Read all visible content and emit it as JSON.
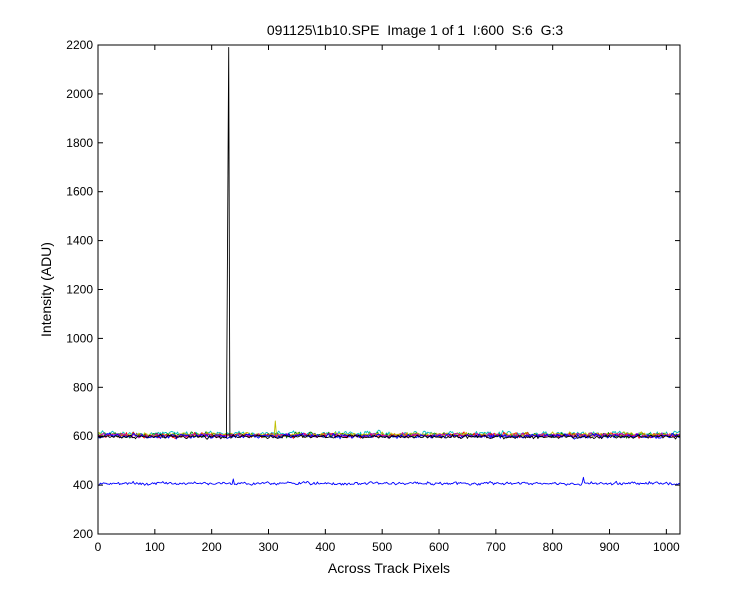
{
  "chart_data": {
    "type": "line",
    "title": "091125\\1b10.SPE  Image 1 of 1  I:600  S:6  G:3",
    "xlabel": "Across Track Pixels",
    "ylabel": "Intensity (ADU)",
    "xlim": [
      0,
      1024
    ],
    "ylim": [
      200,
      2200
    ],
    "xticks": [
      0,
      100,
      200,
      300,
      400,
      500,
      600,
      700,
      800,
      900,
      1000
    ],
    "yticks": [
      200,
      400,
      600,
      800,
      1000,
      1200,
      1400,
      1600,
      1800,
      2000,
      2200
    ],
    "grid": false,
    "legend": "none",
    "series": [
      {
        "color": "#000000",
        "baseline": 598,
        "noise": 8,
        "spikes": [
          {
            "x": 230,
            "y": 2190
          },
          {
            "x": 231,
            "y": 1020
          },
          {
            "x": 229,
            "y": 1430
          }
        ]
      },
      {
        "color": "#00bfbf",
        "baseline": 610,
        "noise": 12,
        "spikes": []
      },
      {
        "color": "#008000",
        "baseline": 605,
        "noise": 11,
        "spikes": []
      },
      {
        "color": "#ff0000",
        "baseline": 604,
        "noise": 11,
        "spikes": []
      },
      {
        "color": "#bfbf00",
        "baseline": 606,
        "noise": 10,
        "spikes": [
          {
            "x": 313,
            "y": 662
          }
        ]
      },
      {
        "color": "#bf00bf",
        "baseline": 603,
        "noise": 10,
        "spikes": []
      },
      {
        "color": "#0000ff",
        "baseline": 600,
        "noise": 10,
        "spikes": []
      },
      {
        "color": "#0000ff",
        "baseline": 407,
        "noise": 7,
        "spikes": [
          {
            "x": 855,
            "y": 432
          },
          {
            "x": 238,
            "y": 425
          }
        ]
      }
    ]
  }
}
